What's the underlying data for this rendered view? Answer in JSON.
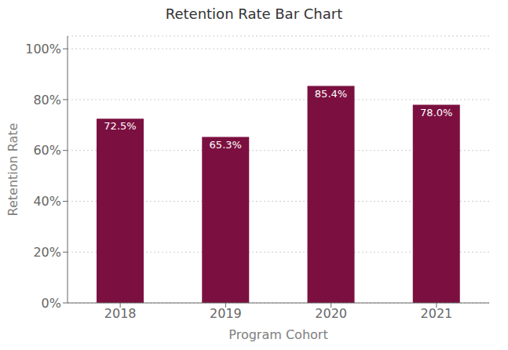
{
  "chart_data": {
    "type": "bar",
    "title": "Retention Rate Bar Chart",
    "xlabel": "Program Cohort",
    "ylabel": "Retention Rate",
    "categories": [
      "2018",
      "2019",
      "2020",
      "2021"
    ],
    "values": [
      72.5,
      65.3,
      85.4,
      78.0
    ],
    "value_labels": [
      "72.5%",
      "65.3%",
      "85.4%",
      "78.0%"
    ],
    "data_labels": true,
    "color": "#7B1040",
    "ylim": [
      0,
      105
    ],
    "yticks": [
      {
        "value": 0,
        "label": "0%"
      },
      {
        "value": 20,
        "label": "20%"
      },
      {
        "value": 40,
        "label": "40%"
      },
      {
        "value": 60,
        "label": "60%"
      },
      {
        "value": 80,
        "label": "80%"
      },
      {
        "value": 100,
        "label": "100%"
      }
    ],
    "grid": true
  }
}
